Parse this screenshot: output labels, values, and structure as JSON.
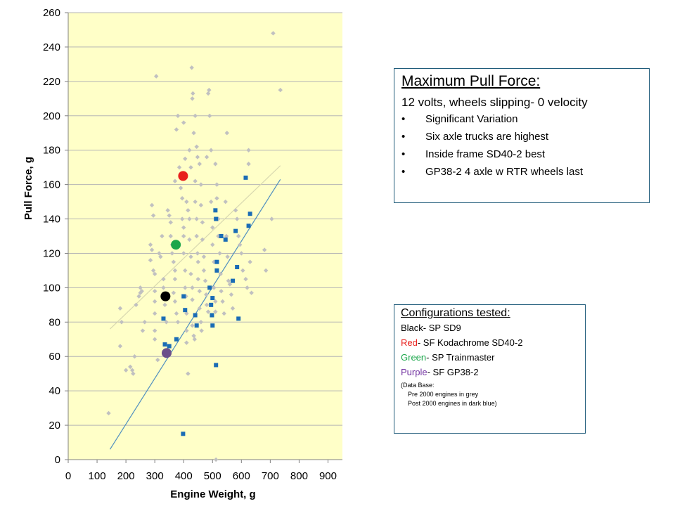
{
  "chart_data": {
    "type": "scatter",
    "xlabel": "Engine Weight, g",
    "ylabel": "Pull Force, g",
    "xlim": [
      0,
      950
    ],
    "ylim": [
      0,
      260
    ],
    "x_ticks": [
      0,
      100,
      200,
      300,
      400,
      500,
      600,
      700,
      800,
      900
    ],
    "y_ticks": [
      0,
      20,
      40,
      60,
      80,
      100,
      120,
      140,
      160,
      180,
      200,
      220,
      240,
      260
    ],
    "grid": "horizontal",
    "plot_background": "#ffffc8",
    "series": [
      {
        "marker": "diamond",
        "color": "#c0c0c0",
        "points": [
          [
            140,
            27
          ],
          [
            180,
            88
          ],
          [
            185,
            80
          ],
          [
            180,
            66
          ],
          [
            200,
            52
          ],
          [
            215,
            54
          ],
          [
            222,
            52
          ],
          [
            225,
            50
          ],
          [
            230,
            60
          ],
          [
            235,
            90
          ],
          [
            245,
            95
          ],
          [
            250,
            97
          ],
          [
            250,
            100
          ],
          [
            255,
            98
          ],
          [
            258,
            75
          ],
          [
            265,
            80
          ],
          [
            285,
            125
          ],
          [
            290,
            148
          ],
          [
            295,
            142
          ],
          [
            290,
            122
          ],
          [
            285,
            116
          ],
          [
            295,
            110
          ],
          [
            300,
            108
          ],
          [
            300,
            98
          ],
          [
            300,
            92
          ],
          [
            300,
            85
          ],
          [
            300,
            75
          ],
          [
            300,
            70
          ],
          [
            310,
            58
          ],
          [
            305,
            223
          ],
          [
            315,
            120
          ],
          [
            320,
            118
          ],
          [
            325,
            130
          ],
          [
            330,
            100
          ],
          [
            330,
            105
          ],
          [
            335,
            90
          ],
          [
            340,
            80
          ],
          [
            345,
            145
          ],
          [
            350,
            142
          ],
          [
            355,
            138
          ],
          [
            355,
            130
          ],
          [
            360,
            125
          ],
          [
            360,
            120
          ],
          [
            365,
            115
          ],
          [
            370,
            110
          ],
          [
            370,
            105
          ],
          [
            365,
            97
          ],
          [
            370,
            92
          ],
          [
            375,
            85
          ],
          [
            380,
            80
          ],
          [
            370,
            162
          ],
          [
            375,
            192
          ],
          [
            380,
            200
          ],
          [
            385,
            170
          ],
          [
            390,
            158
          ],
          [
            395,
            152
          ],
          [
            395,
            140
          ],
          [
            400,
            135
          ],
          [
            400,
            130
          ],
          [
            400,
            120
          ],
          [
            405,
            110
          ],
          [
            405,
            100
          ],
          [
            408,
            95
          ],
          [
            410,
            85
          ],
          [
            410,
            75
          ],
          [
            410,
            68
          ],
          [
            415,
            50
          ],
          [
            400,
            196
          ],
          [
            405,
            175
          ],
          [
            410,
            150
          ],
          [
            415,
            145
          ],
          [
            420,
            140
          ],
          [
            420,
            128
          ],
          [
            425,
            118
          ],
          [
            425,
            108
          ],
          [
            430,
            100
          ],
          [
            430,
            93
          ],
          [
            430,
            78
          ],
          [
            435,
            72
          ],
          [
            438,
            70
          ],
          [
            420,
            180
          ],
          [
            425,
            170
          ],
          [
            428,
            228
          ],
          [
            430,
            210
          ],
          [
            432,
            213
          ],
          [
            435,
            190
          ],
          [
            440,
            162
          ],
          [
            440,
            150
          ],
          [
            445,
            140
          ],
          [
            445,
            130
          ],
          [
            448,
            120
          ],
          [
            450,
            115
          ],
          [
            450,
            105
          ],
          [
            455,
            98
          ],
          [
            455,
            88
          ],
          [
            460,
            80
          ],
          [
            462,
            75
          ],
          [
            440,
            200
          ],
          [
            445,
            182
          ],
          [
            448,
            176
          ],
          [
            455,
            172
          ],
          [
            460,
            160
          ],
          [
            460,
            148
          ],
          [
            465,
            138
          ],
          [
            465,
            128
          ],
          [
            470,
            118
          ],
          [
            470,
            110
          ],
          [
            475,
            104
          ],
          [
            478,
            96
          ],
          [
            480,
            90
          ],
          [
            485,
            86
          ],
          [
            480,
            176
          ],
          [
            485,
            213
          ],
          [
            488,
            215
          ],
          [
            490,
            200
          ],
          [
            495,
            180
          ],
          [
            495,
            150
          ],
          [
            500,
            135
          ],
          [
            500,
            125
          ],
          [
            505,
            115
          ],
          [
            505,
            100
          ],
          [
            510,
            92
          ],
          [
            510,
            86
          ],
          [
            512,
            0
          ],
          [
            510,
            172
          ],
          [
            515,
            160
          ],
          [
            515,
            152
          ],
          [
            520,
            140
          ],
          [
            520,
            130
          ],
          [
            525,
            120
          ],
          [
            528,
            108
          ],
          [
            530,
            98
          ],
          [
            535,
            92
          ],
          [
            540,
            85
          ],
          [
            545,
            150
          ],
          [
            548,
            130
          ],
          [
            550,
            190
          ],
          [
            552,
            118
          ],
          [
            555,
            104
          ],
          [
            560,
            102
          ],
          [
            565,
            96
          ],
          [
            570,
            88
          ],
          [
            580,
            145
          ],
          [
            585,
            140
          ],
          [
            590,
            130
          ],
          [
            595,
            125
          ],
          [
            600,
            120
          ],
          [
            605,
            110
          ],
          [
            615,
            105
          ],
          [
            620,
            100
          ],
          [
            625,
            180
          ],
          [
            625,
            172
          ],
          [
            630,
            115
          ],
          [
            635,
            97
          ],
          [
            680,
            122
          ],
          [
            685,
            110
          ],
          [
            705,
            140
          ],
          [
            710,
            248
          ],
          [
            735,
            215
          ]
        ]
      },
      {
        "marker": "square",
        "color": "#1a6cb5",
        "points": [
          [
            330,
            82
          ],
          [
            335,
            67
          ],
          [
            350,
            66
          ],
          [
            375,
            70
          ],
          [
            398,
            15
          ],
          [
            400,
            95
          ],
          [
            405,
            87
          ],
          [
            440,
            84
          ],
          [
            445,
            78
          ],
          [
            490,
            100
          ],
          [
            495,
            90
          ],
          [
            498,
            84
          ],
          [
            500,
            78
          ],
          [
            500,
            94
          ],
          [
            510,
            145
          ],
          [
            512,
            140
          ],
          [
            512,
            55
          ],
          [
            515,
            115
          ],
          [
            515,
            110
          ],
          [
            530,
            130
          ],
          [
            545,
            128
          ],
          [
            570,
            104
          ],
          [
            580,
            133
          ],
          [
            585,
            112
          ],
          [
            590,
            82
          ],
          [
            615,
            164
          ],
          [
            625,
            136
          ],
          [
            630,
            143
          ]
        ]
      },
      {
        "marker": "circle",
        "highlight": true,
        "points": [
          {
            "x": 337,
            "y": 95,
            "color": "#000000"
          },
          {
            "x": 398,
            "y": 165,
            "color": "#e8201c"
          },
          {
            "x": 373,
            "y": 125,
            "color": "#1aa64a"
          },
          {
            "x": 341,
            "y": 62,
            "color": "#6b4f8a"
          }
        ]
      }
    ],
    "trendlines": [
      {
        "color": "#d8d8b0",
        "from": [
          145,
          76
        ],
        "to": [
          735,
          171
        ]
      },
      {
        "color": "#4f8fc0",
        "from": [
          145,
          6
        ],
        "to": [
          735,
          163
        ]
      }
    ]
  },
  "pull_box": {
    "title": "Maximum Pull Force:",
    "subtitle": "12 volts, wheels slipping- 0 velocity",
    "bullet": "•",
    "items": [
      "Significant Variation",
      "Six axle trucks are highest",
      "Inside frame SD40-2 best",
      "GP38-2 4 axle w RTR wheels last"
    ]
  },
  "config_box": {
    "title": "Configurations tested:",
    "black_label": "Black",
    "black_text": "- SP SD9",
    "black_color": "#000000",
    "red_label": "Red",
    "red_text": "- SF Kodachrome SD40-2",
    "red_color": "#e8201c",
    "green_label": "Green",
    "green_text": "-  SP Trainmaster",
    "green_color": "#1aa64a",
    "purple_label": "Purple",
    "purple_text": "- SF GP38-2",
    "purple_color": "#7030a0",
    "db_title": "(Data Base:",
    "db_line1": "Pre 2000 engines in grey",
    "db_line2": "Post 2000 engines in dark blue)"
  }
}
